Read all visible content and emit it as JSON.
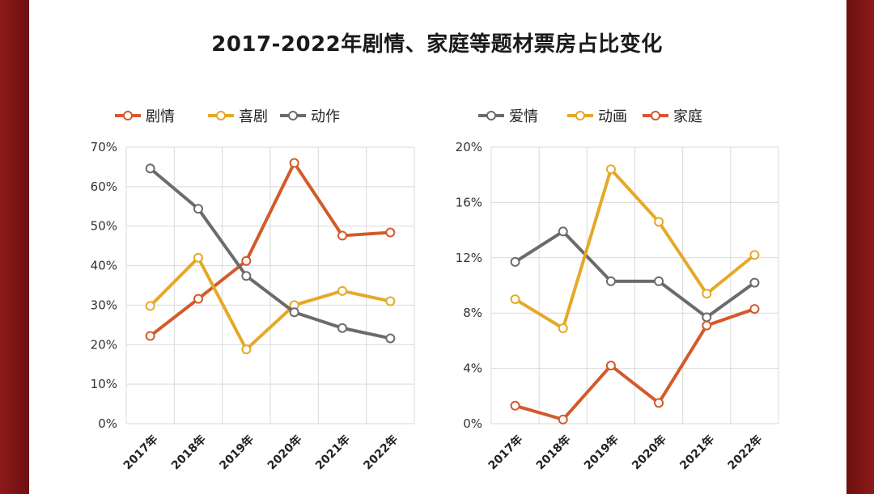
{
  "title": "2017-2022年剧情、家庭等题材票房占比变化",
  "chart_data": [
    {
      "type": "line",
      "categories": [
        "2017年",
        "2018年",
        "2019年",
        "2020年",
        "2021年",
        "2022年"
      ],
      "yticks": [
        "0%",
        "10%",
        "20%",
        "30%",
        "40%",
        "50%",
        "60%",
        "70%"
      ],
      "ylim": [
        0,
        70
      ],
      "grid": true,
      "legend_position": "top",
      "series": [
        {
          "name": "剧情",
          "color": "#d35a2a",
          "values": [
            22.2,
            31.6,
            41.2,
            66.0,
            47.6,
            48.4
          ]
        },
        {
          "name": "喜剧",
          "color": "#e5a928",
          "values": [
            29.8,
            42.0,
            18.8,
            30.0,
            33.6,
            31.0
          ]
        },
        {
          "name": "动作",
          "color": "#6b6b6b",
          "values": [
            64.6,
            54.4,
            37.4,
            28.2,
            24.2,
            21.6
          ]
        }
      ]
    },
    {
      "type": "line",
      "categories": [
        "2017年",
        "2018年",
        "2019年",
        "2020年",
        "2021年",
        "2022年"
      ],
      "yticks": [
        "0%",
        "4%",
        "8%",
        "12%",
        "16%",
        "20%"
      ],
      "ylim": [
        0,
        20
      ],
      "grid": true,
      "legend_position": "top",
      "series": [
        {
          "name": "爱情",
          "color": "#6b6b6b",
          "values": [
            11.7,
            13.9,
            10.3,
            10.3,
            7.7,
            10.2
          ]
        },
        {
          "name": "动画",
          "color": "#e5a928",
          "values": [
            9.0,
            6.9,
            18.4,
            14.6,
            9.4,
            12.2
          ]
        },
        {
          "name": "家庭",
          "color": "#d35a2a",
          "values": [
            1.3,
            0.3,
            4.2,
            1.5,
            7.1,
            8.3
          ]
        }
      ]
    }
  ]
}
